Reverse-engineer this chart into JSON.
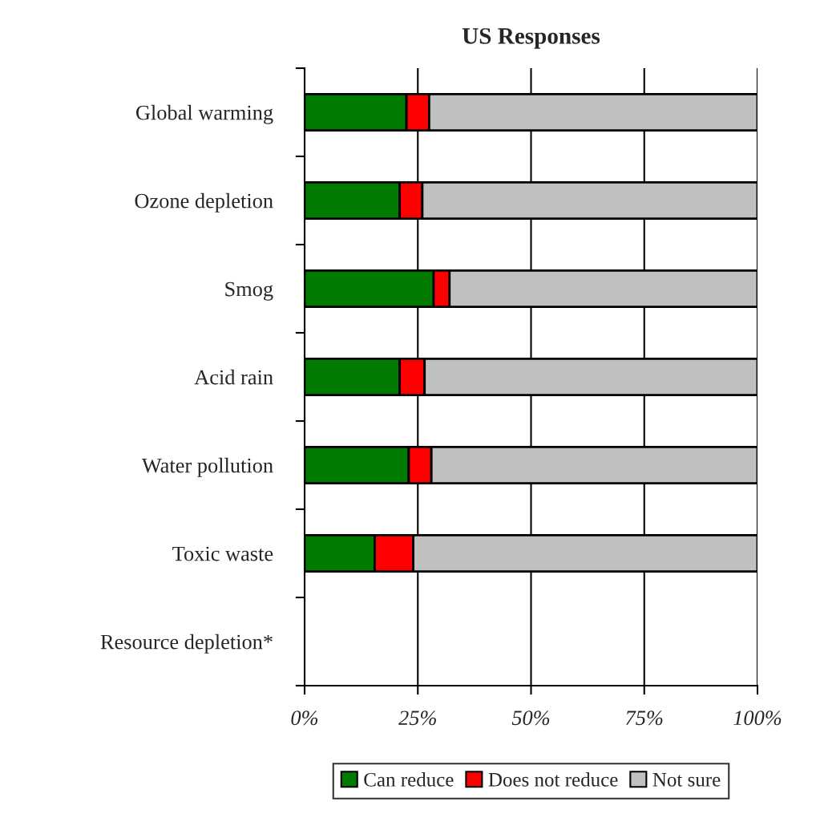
{
  "chart_data": {
    "type": "bar",
    "title": "US Responses",
    "orientation": "horizontal",
    "stacked": true,
    "categories": [
      "Global warming",
      "Ozone depletion",
      "Smog",
      "Acid rain",
      "Water pollution",
      "Toxic waste",
      "Resource depletion*"
    ],
    "series": [
      {
        "name": "Can reduce",
        "color": "#007a00",
        "values": [
          22.5,
          21,
          28.5,
          21,
          23,
          15.5,
          null
        ]
      },
      {
        "name": "Does not reduce",
        "color": "#ff0000",
        "values": [
          5,
          5,
          3.5,
          5.5,
          5,
          8.5,
          null
        ]
      },
      {
        "name": "Not sure",
        "color": "#c0c0c0",
        "values": [
          72.5,
          74,
          68,
          73.5,
          72,
          76,
          null
        ]
      }
    ],
    "xlim": [
      0,
      100
    ],
    "xticks": [
      {
        "value": 0,
        "label": "0%"
      },
      {
        "value": 25,
        "label": "25%"
      },
      {
        "value": 50,
        "label": "50%"
      },
      {
        "value": 75,
        "label": "75%"
      },
      {
        "value": 100,
        "label": "100%"
      }
    ],
    "grid": "x",
    "legend": "bottom"
  }
}
